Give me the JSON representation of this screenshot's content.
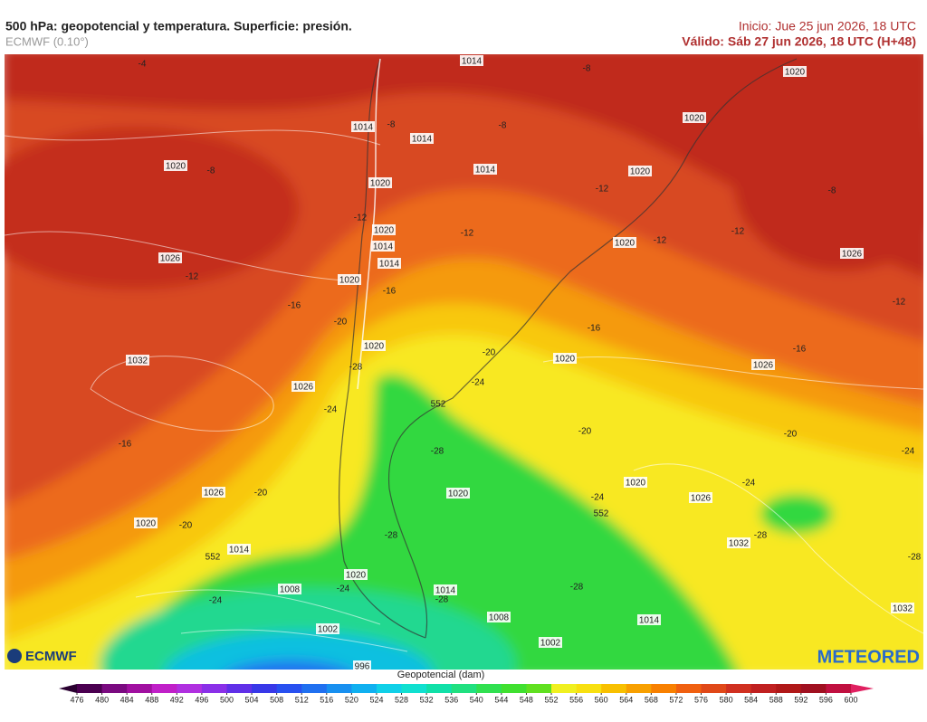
{
  "header": {
    "title": "500 hPa: geopotencial y temperatura. Superficie: presión.",
    "subtitle": "ECMWF (0.10°)",
    "init": "Inicio: Jue 25 jun 2026, 18 UTC",
    "valid": "Válido: Sáb 27 jun 2026, 18 UTC (H+48)"
  },
  "map": {
    "labels": [
      -4,
      1014,
      -8,
      1020,
      1014,
      -8,
      1014,
      -8,
      1020,
      1020,
      -8,
      1014,
      1020,
      1020,
      -12,
      -8,
      -12,
      1020,
      1014,
      -12,
      1020,
      -12,
      -12,
      1026,
      1026,
      -12,
      1014,
      1020,
      -16,
      -16,
      -12,
      -20,
      -16,
      1020,
      -16,
      1032,
      -20,
      1020,
      -28,
      1026,
      -24,
      1026,
      552,
      -24,
      -16,
      -20,
      -20,
      -24,
      -28,
      1020,
      -24,
      1026,
      -20,
      1020,
      -24,
      1026,
      1020,
      -20,
      552,
      -28,
      1032,
      -28,
      -28,
      1014,
      552,
      1020,
      1008,
      -24,
      -24,
      1014,
      -28,
      -28,
      1032,
      1008,
      1014,
      1002,
      1002,
      996
    ]
  },
  "logos": {
    "left": "ECMWF",
    "right": "METEORED"
  },
  "colorbar": {
    "label": "Geopotencial (dam)",
    "ticks": [
      476,
      480,
      484,
      488,
      492,
      496,
      500,
      504,
      508,
      512,
      516,
      520,
      524,
      528,
      532,
      536,
      540,
      544,
      548,
      552,
      556,
      560,
      564,
      568,
      572,
      576,
      580,
      584,
      588,
      592,
      596,
      600
    ],
    "colors": [
      "#2a0030",
      "#4b0050",
      "#7a0a80",
      "#a010a0",
      "#c020c8",
      "#b030e0",
      "#8a30e8",
      "#6030e8",
      "#3838e8",
      "#2850f0",
      "#2070f0",
      "#1890f0",
      "#10b0f0",
      "#10d0e8",
      "#10e0d0",
      "#10e0a8",
      "#20e080",
      "#30e050",
      "#40e030",
      "#60e020",
      "#f0f020",
      "#f8e010",
      "#f8c000",
      "#f8a000",
      "#f88000",
      "#f06010",
      "#e04818",
      "#d03020",
      "#c02020",
      "#b01818",
      "#a01020",
      "#c01040",
      "#e02060"
    ]
  }
}
